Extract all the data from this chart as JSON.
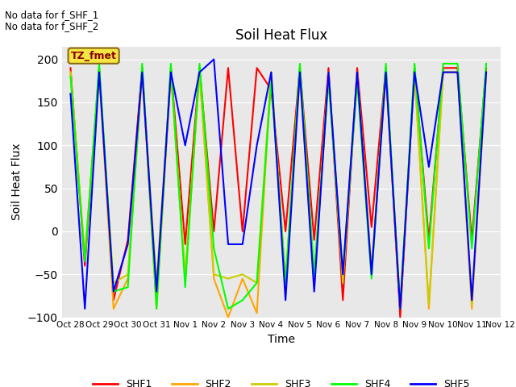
{
  "title": "Soil Heat Flux",
  "ylabel": "Soil Heat Flux",
  "xlabel": "Time",
  "annotations": [
    "No data for f_SHF_1",
    "No data for f_SHF_2"
  ],
  "legend_label": "TZ_fmet",
  "bg_color": "#e8e8e8",
  "ylim": [
    -100,
    215
  ],
  "yticks": [
    -100,
    -50,
    0,
    50,
    100,
    150,
    200
  ],
  "series": {
    "SHF1": {
      "color": "red",
      "x": [
        0,
        0.5,
        1,
        1.5,
        2,
        2.5,
        3,
        3.5,
        4,
        4.5,
        5,
        5.5,
        6,
        6.5,
        7,
        7.5,
        8,
        8.5,
        9,
        9.5,
        10,
        10.5,
        11,
        11.5,
        12,
        12.5,
        13,
        13.5,
        14,
        14.5
      ],
      "y": [
        190,
        -40,
        190,
        -80,
        -10,
        190,
        -80,
        190,
        -15,
        190,
        0,
        190,
        0,
        190,
        165,
        0,
        190,
        -10,
        190,
        -80,
        190,
        5,
        190,
        -100,
        190,
        -10,
        190,
        190,
        -10,
        190
      ]
    },
    "SHF2": {
      "color": "orange",
      "x": [
        0,
        0.5,
        1,
        1.5,
        2,
        2.5,
        3,
        3.5,
        4,
        4.5,
        5,
        5.5,
        6,
        6.5,
        7,
        7.5,
        8,
        8.5,
        9,
        9.5,
        10,
        10.5,
        11,
        11.5,
        12,
        12.5,
        13,
        13.5,
        14,
        14.5
      ],
      "y": [
        185,
        -30,
        185,
        -90,
        -55,
        185,
        -90,
        185,
        -55,
        185,
        -55,
        -100,
        -55,
        -95,
        185,
        -60,
        185,
        -55,
        185,
        -55,
        185,
        -45,
        185,
        -90,
        185,
        -90,
        185,
        185,
        -90,
        185
      ]
    },
    "SHF3": {
      "color": "#cccc00",
      "x": [
        0,
        0.5,
        1,
        1.5,
        2,
        2.5,
        3,
        3.5,
        4,
        4.5,
        5,
        5.5,
        6,
        6.5,
        7,
        7.5,
        8,
        8.5,
        9,
        9.5,
        10,
        10.5,
        11,
        11.5,
        12,
        12.5,
        13,
        13.5,
        14,
        14.5
      ],
      "y": [
        185,
        -30,
        185,
        -60,
        -50,
        185,
        -60,
        185,
        -50,
        185,
        -50,
        -55,
        -50,
        -60,
        185,
        -60,
        185,
        -60,
        185,
        -60,
        185,
        -50,
        185,
        -85,
        185,
        -85,
        185,
        185,
        -85,
        185
      ]
    },
    "SHF4": {
      "color": "lime",
      "x": [
        0,
        0.5,
        1,
        1.5,
        2,
        2.5,
        3,
        3.5,
        4,
        4.5,
        5,
        5.5,
        6,
        6.5,
        7,
        7.5,
        8,
        8.5,
        9,
        9.5,
        10,
        10.5,
        11,
        11.5,
        12,
        12.5,
        13,
        13.5,
        14,
        14.5
      ],
      "y": [
        180,
        -35,
        195,
        -70,
        -65,
        195,
        -90,
        195,
        -65,
        195,
        -20,
        -90,
        -80,
        -60,
        175,
        -60,
        195,
        -50,
        175,
        -50,
        175,
        -55,
        195,
        -90,
        195,
        -20,
        195,
        195,
        -20,
        195
      ]
    },
    "SHF5": {
      "color": "blue",
      "x": [
        0,
        0.5,
        1,
        1.5,
        2,
        2.5,
        3,
        3.5,
        4,
        4.5,
        5,
        5.5,
        6,
        6.5,
        7,
        7.5,
        8,
        8.5,
        9,
        9.5,
        10,
        10.5,
        11,
        11.5,
        12,
        12.5,
        13,
        13.5,
        14,
        14.5
      ],
      "y": [
        160,
        -90,
        185,
        -70,
        -15,
        185,
        -70,
        185,
        100,
        185,
        200,
        -15,
        -15,
        100,
        185,
        -80,
        185,
        -70,
        185,
        -50,
        185,
        -50,
        185,
        -90,
        185,
        75,
        185,
        185,
        -80,
        185
      ]
    }
  },
  "xtick_labels": [
    "Oct 28",
    "Oct 29",
    "Oct 30",
    "Oct 31",
    "Nov 1",
    "Nov 2",
    "Nov 3",
    "Nov 4",
    "Nov 5",
    "Nov 6",
    "Nov 7",
    "Nov 8",
    "Nov 9",
    "Nov 10",
    "Nov 11",
    "Nov 12"
  ],
  "xtick_positions": [
    0,
    1,
    2,
    3,
    4,
    5,
    6,
    7,
    8,
    9,
    10,
    11,
    12,
    13,
    14,
    15
  ]
}
